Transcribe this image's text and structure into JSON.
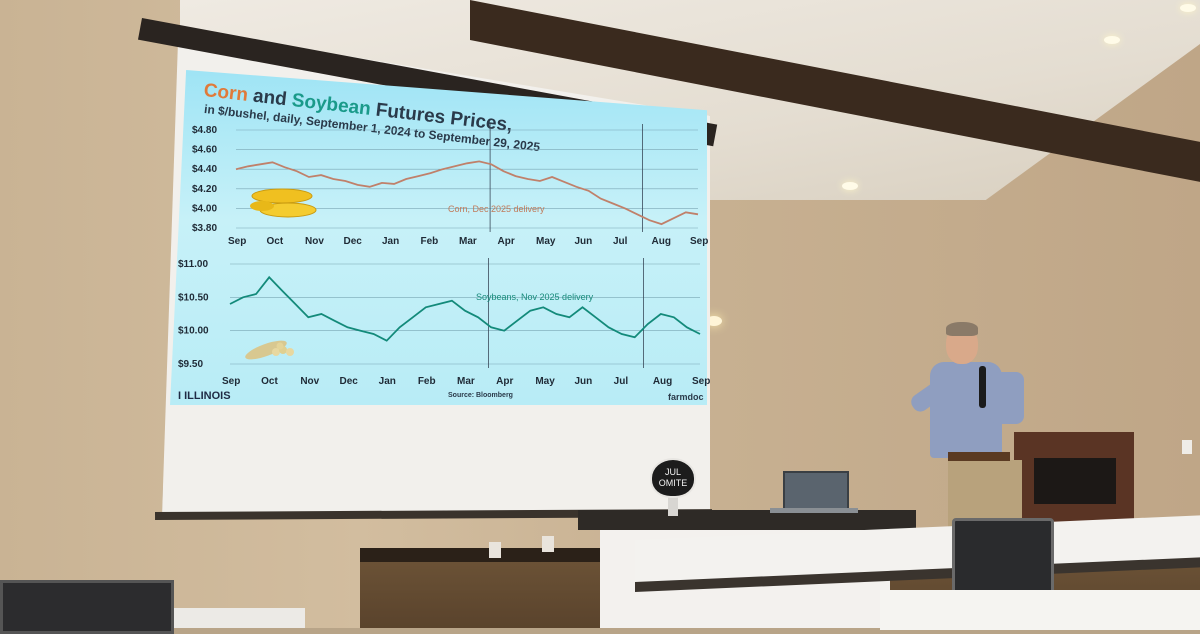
{
  "slide": {
    "title_corn": "Corn",
    "title_and": " and ",
    "title_soy": "Soybean",
    "title_rest": " Futures Prices,",
    "subtitle": "in $/bushel, daily, September 1, 2024 to September 29, 2025",
    "corn_series_label": "Corn, Dec 2025 delivery",
    "soy_series_label": "Soybeans, Nov 2025 delivery",
    "logo_text": "I ILLINOIS",
    "source": "Source: Bloomberg",
    "brand": "farmdoc"
  },
  "corn_axis": {
    "y_ticks": [
      "$4.80",
      "$4.60",
      "$4.40",
      "$4.20",
      "$4.00",
      "$3.80"
    ],
    "x_ticks": [
      "Sep",
      "Oct",
      "Nov",
      "Dec",
      "Jan",
      "Feb",
      "Mar",
      "Apr",
      "May",
      "Jun",
      "Jul",
      "Aug",
      "Sep"
    ]
  },
  "soy_axis": {
    "y_ticks": [
      "$11.00",
      "$10.50",
      "$10.00",
      "$9.50"
    ],
    "x_ticks": [
      "Sep",
      "Oct",
      "Nov",
      "Dec",
      "Jan",
      "Feb",
      "Mar",
      "Apr",
      "May",
      "Jun",
      "Jul",
      "Aug",
      "Sep"
    ]
  },
  "corn_values": [
    4.4,
    4.43,
    4.45,
    4.47,
    4.42,
    4.38,
    4.32,
    4.34,
    4.3,
    4.28,
    4.24,
    4.22,
    4.26,
    4.25,
    4.3,
    4.33,
    4.36,
    4.4,
    4.43,
    4.46,
    4.48,
    4.45,
    4.38,
    4.33,
    4.3,
    4.28,
    4.32,
    4.27,
    4.22,
    4.18,
    4.1,
    4.05,
    4.0,
    3.94,
    3.88,
    3.84,
    3.9,
    3.96,
    3.94
  ],
  "soy_values": [
    10.4,
    10.5,
    10.55,
    10.8,
    10.6,
    10.4,
    10.2,
    10.25,
    10.15,
    10.05,
    10.0,
    9.95,
    9.85,
    10.05,
    10.2,
    10.35,
    10.4,
    10.45,
    10.3,
    10.2,
    10.05,
    10.0,
    10.15,
    10.3,
    10.35,
    10.25,
    10.2,
    10.35,
    10.2,
    10.05,
    9.95,
    9.9,
    10.1,
    10.25,
    10.2,
    10.05,
    9.95
  ],
  "table_sign": [
    "JUL",
    "OMITE"
  ],
  "colors": {
    "corn_line": "#c0806a",
    "soy_line": "#138a7a",
    "corn_label": "#c07a5a",
    "soy_label": "#178a7a"
  }
}
